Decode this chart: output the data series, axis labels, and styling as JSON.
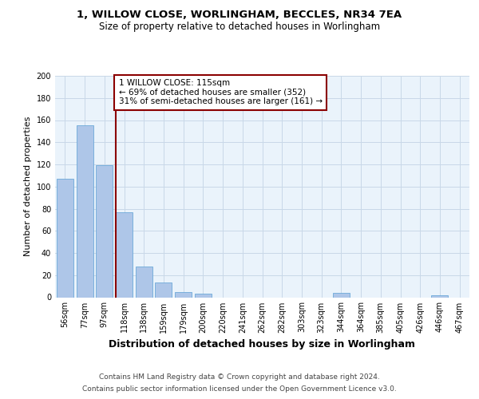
{
  "title_line1": "1, WILLOW CLOSE, WORLINGHAM, BECCLES, NR34 7EA",
  "title_line2": "Size of property relative to detached houses in Worlingham",
  "xlabel": "Distribution of detached houses by size in Worlingham",
  "ylabel": "Number of detached properties",
  "bar_labels": [
    "56sqm",
    "77sqm",
    "97sqm",
    "118sqm",
    "138sqm",
    "159sqm",
    "179sqm",
    "200sqm",
    "220sqm",
    "241sqm",
    "262sqm",
    "282sqm",
    "303sqm",
    "323sqm",
    "344sqm",
    "364sqm",
    "385sqm",
    "405sqm",
    "426sqm",
    "446sqm",
    "467sqm"
  ],
  "bar_values": [
    107,
    155,
    119,
    77,
    28,
    13,
    5,
    3,
    0,
    0,
    0,
    0,
    0,
    0,
    4,
    0,
    0,
    0,
    0,
    2,
    0
  ],
  "bar_color": "#aec6e8",
  "bar_edge_color": "#5a9fd4",
  "vline_color": "#8b0000",
  "annotation_text": "1 WILLOW CLOSE: 115sqm\n← 69% of detached houses are smaller (352)\n31% of semi-detached houses are larger (161) →",
  "annotation_box_color": "#ffffff",
  "annotation_box_edge_color": "#8b0000",
  "ylim": [
    0,
    200
  ],
  "yticks": [
    0,
    20,
    40,
    60,
    80,
    100,
    120,
    140,
    160,
    180,
    200
  ],
  "bg_color": "#eaf3fb",
  "grid_color": "#c8d8e8",
  "footer_line1": "Contains HM Land Registry data © Crown copyright and database right 2024.",
  "footer_line2": "Contains public sector information licensed under the Open Government Licence v3.0.",
  "title_fontsize": 9.5,
  "subtitle_fontsize": 8.5,
  "ylabel_fontsize": 8,
  "xlabel_fontsize": 9,
  "tick_fontsize": 7,
  "annotation_fontsize": 7.5,
  "footer_fontsize": 6.5
}
